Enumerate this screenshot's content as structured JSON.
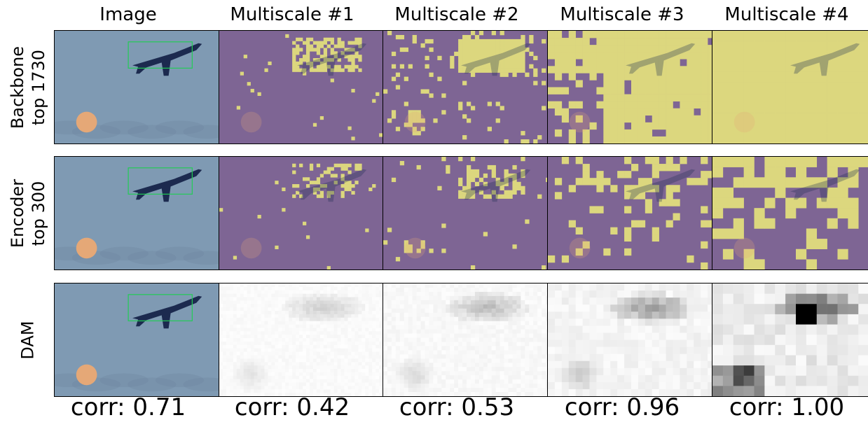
{
  "columns": [
    "Image",
    "Multiscale #1",
    "Multiscale #2",
    "Multiscale #3",
    "Multiscale #4"
  ],
  "rows": [
    "Backbone\ntop 1730",
    "Encoder\ntop 300",
    "DAM"
  ],
  "correlations": [
    "corr: 0.71",
    "corr: 0.42",
    "corr: 0.53",
    "corr: 0.96",
    "corr: 1.00"
  ],
  "colors": {
    "sky": "#7f9ab3",
    "mask_purple": "#7e6594",
    "mask_yellow": "#dcd77e",
    "bbox_green": "#22cc55",
    "moon": "#e5a877",
    "plane": "#1c2a4f"
  }
}
